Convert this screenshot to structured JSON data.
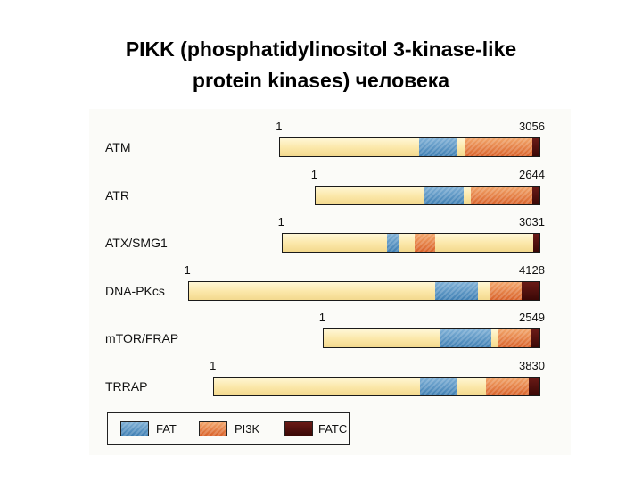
{
  "title": {
    "line1": "PIKK (phosphatidylinositol 3-kinase-like",
    "line2": "protein kinases) человека"
  },
  "colors": {
    "fat": "#3f7fb3",
    "pi3k": "#d9622a",
    "fatc": "#3a0806",
    "backbone": "#fbe7a8"
  },
  "proteins": [
    {
      "name": "ATM",
      "start_label": "1",
      "end_label": "3056",
      "length": 3056,
      "domains": [
        {
          "type": "fat",
          "start": 1640,
          "end": 2080
        },
        {
          "type": "pi3k",
          "start": 2180,
          "end": 2970
        },
        {
          "type": "fatc",
          "start": 2970,
          "end": 3056
        }
      ]
    },
    {
      "name": "ATR",
      "start_label": "1",
      "end_label": "2644",
      "length": 2644,
      "domains": [
        {
          "type": "fat",
          "start": 1290,
          "end": 1750
        },
        {
          "type": "pi3k",
          "start": 1830,
          "end": 2565
        },
        {
          "type": "fatc",
          "start": 2565,
          "end": 2644
        }
      ]
    },
    {
      "name": "ATX/SMG1",
      "start_label": "1",
      "end_label": "3031",
      "length": 3031,
      "domains": [
        {
          "type": "fat",
          "start": 1230,
          "end": 1370
        },
        {
          "type": "pi3k",
          "start": 1560,
          "end": 1800
        },
        {
          "type": "fatc",
          "start": 2960,
          "end": 3031
        }
      ]
    },
    {
      "name": "DNA-PKcs",
      "start_label": "1",
      "end_label": "4128",
      "length": 4128,
      "domains": [
        {
          "type": "fat",
          "start": 2900,
          "end": 3400
        },
        {
          "type": "pi3k",
          "start": 3540,
          "end": 3920
        },
        {
          "type": "fatc",
          "start": 3920,
          "end": 4128
        }
      ]
    },
    {
      "name": "mTOR/FRAP",
      "start_label": "1",
      "end_label": "2549",
      "length": 2549,
      "domains": [
        {
          "type": "fat",
          "start": 1385,
          "end": 1985
        },
        {
          "type": "pi3k",
          "start": 2050,
          "end": 2440
        },
        {
          "type": "fatc",
          "start": 2440,
          "end": 2549
        }
      ]
    },
    {
      "name": "TRRAP",
      "start_label": "1",
      "end_label": "3830",
      "length": 3830,
      "domains": [
        {
          "type": "fat",
          "start": 2420,
          "end": 2860
        },
        {
          "type": "pi3k",
          "start": 3200,
          "end": 3700
        },
        {
          "type": "fatc",
          "start": 3700,
          "end": 3830
        }
      ]
    }
  ],
  "legend": {
    "fat": "FAT",
    "pi3k": "PI3K",
    "fatc": "FATC"
  }
}
